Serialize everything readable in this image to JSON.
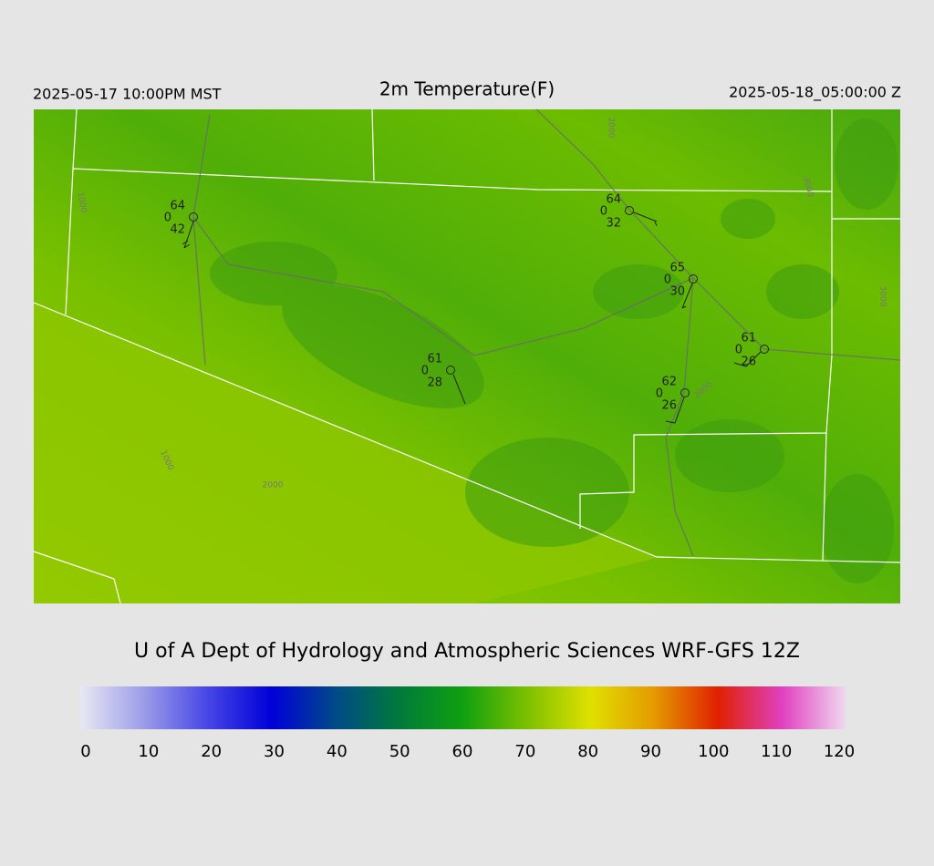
{
  "header": {
    "local_time": "2025-05-17 10:00PM MST",
    "title": "2m Temperature(F)",
    "valid_time": "2025-05-18_05:00:00 Z"
  },
  "credit": "U of A Dept of Hydrology and Atmospheric Sciences WRF-GFS 12Z",
  "colorbar": {
    "ticks": [
      0,
      10,
      20,
      30,
      40,
      50,
      60,
      70,
      80,
      90,
      100,
      110,
      120
    ],
    "colors": [
      "#e8e8f4",
      "#9c9ce8",
      "#4646e6",
      "#0000d8",
      "#004a88",
      "#007a3a",
      "#10a010",
      "#7cc000",
      "#e0e000",
      "#e49a00",
      "#e02000",
      "#e040c0",
      "#f0d8f0"
    ]
  },
  "stations": [
    {
      "temperature": 64,
      "pressure": 0,
      "dewpoint": 42
    },
    {
      "temperature": 64,
      "pressure": 0,
      "dewpoint": 32
    },
    {
      "temperature": 65,
      "pressure": 0,
      "dewpoint": 30
    },
    {
      "temperature": 61,
      "pressure": 0,
      "dewpoint": 26
    },
    {
      "temperature": 61,
      "pressure": 0,
      "dewpoint": 28
    },
    {
      "temperature": 62,
      "pressure": 0,
      "dewpoint": 26
    }
  ],
  "contour_labels": [
    "2000",
    "1000",
    "1000",
    "2000",
    "3000",
    "2000",
    "3000"
  ]
}
